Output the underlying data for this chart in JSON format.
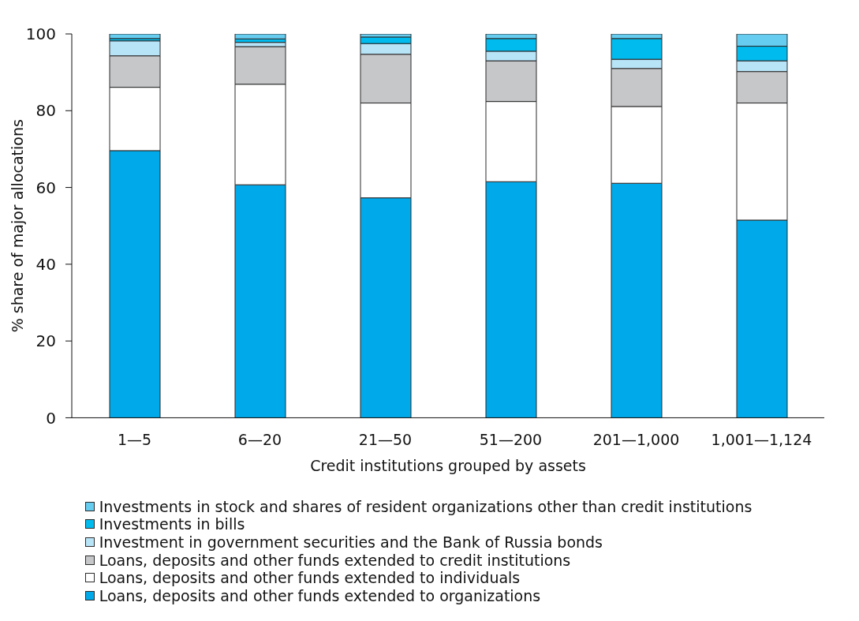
{
  "chart_data": {
    "type": "bar",
    "stacked": true,
    "xlabel": "Credit institutions grouped by assets",
    "ylabel": "% share of major allocations",
    "categories": [
      "1—5",
      "6—20",
      "21—50",
      "51—200",
      "201—1,000",
      "1,001—1,124"
    ],
    "series": [
      {
        "name": "Loans, deposits and other funds extended to organizations",
        "color": "#00aaea",
        "values": [
          69.6,
          60.7,
          57.3,
          61.5,
          61.1,
          51.5
        ]
      },
      {
        "name": "Loans, deposits and other funds extended to individuals",
        "color": "#ffffff",
        "values": [
          16.5,
          26.2,
          24.7,
          20.9,
          20.0,
          30.5
        ]
      },
      {
        "name": "Loans, deposits and other funds extended to credit institutions",
        "color": "#c6c7c9",
        "values": [
          8.2,
          9.8,
          12.7,
          10.6,
          9.9,
          8.2
        ]
      },
      {
        "name": "Investment in government securities and the Bank of Russia bonds",
        "color": "#b8e4f8",
        "values": [
          3.9,
          1.1,
          2.8,
          2.5,
          2.4,
          2.8
        ]
      },
      {
        "name": "Investments in bills",
        "color": "#00bbee",
        "values": [
          0.6,
          0.9,
          1.7,
          3.3,
          5.4,
          3.8
        ]
      },
      {
        "name": "Investments in stock and shares of resident organizations other than credit institutions",
        "color": "#66ccf0",
        "values": [
          1.2,
          1.3,
          0.8,
          1.2,
          1.2,
          3.2
        ]
      }
    ],
    "ylim": [
      0,
      100
    ],
    "yticks": [
      0,
      20,
      40,
      60,
      80,
      100
    ],
    "legend": "bottom"
  }
}
